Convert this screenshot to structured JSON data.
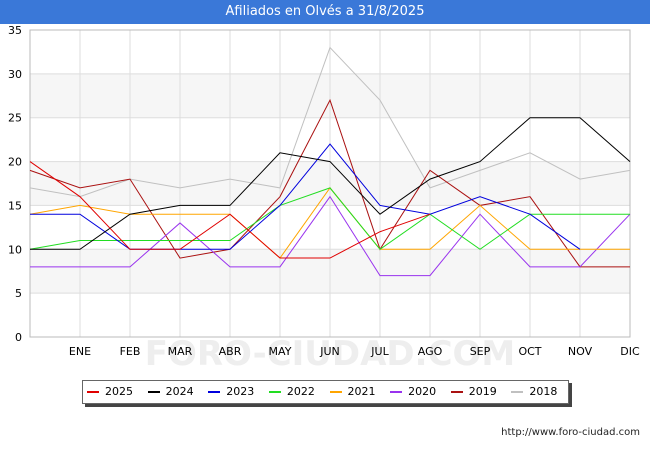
{
  "title": "Afiliados en Olvés a 31/8/2025",
  "footer": "http://www.foro-ciudad.com",
  "watermark": "FORO-CIUDAD.COM",
  "chart_data": {
    "type": "line",
    "categories": [
      "",
      "ENE",
      "FEB",
      "MAR",
      "ABR",
      "MAY",
      "JUN",
      "JUL",
      "AGO",
      "SEP",
      "OCT",
      "NOV",
      "DIC"
    ],
    "ylim": [
      0,
      35
    ],
    "yticks": [
      0,
      5,
      10,
      15,
      20,
      25,
      30,
      35
    ],
    "grid": true,
    "legend_position": "bottom",
    "series": [
      {
        "name": "2025",
        "color": "#e00000",
        "values": [
          20,
          16,
          10,
          10,
          14,
          9,
          9,
          12,
          14,
          null,
          null,
          null,
          null
        ]
      },
      {
        "name": "2024",
        "color": "#000000",
        "values": [
          10,
          10,
          14,
          15,
          15,
          21,
          20,
          14,
          18,
          20,
          25,
          25,
          20
        ]
      },
      {
        "name": "2023",
        "color": "#0000dd",
        "values": [
          14,
          14,
          10,
          10,
          10,
          15,
          22,
          15,
          14,
          16,
          14,
          10,
          null
        ]
      },
      {
        "name": "2022",
        "color": "#22dd22",
        "values": [
          10,
          11,
          11,
          11,
          11,
          15,
          17,
          10,
          14,
          10,
          14,
          14,
          14
        ]
      },
      {
        "name": "2021",
        "color": "#ffa500",
        "values": [
          14,
          15,
          14,
          14,
          14,
          9,
          17,
          10,
          10,
          15,
          10,
          10,
          10
        ]
      },
      {
        "name": "2020",
        "color": "#9933ee",
        "values": [
          8,
          8,
          8,
          13,
          8,
          8,
          16,
          7,
          7,
          14,
          8,
          8,
          14
        ]
      },
      {
        "name": "2019",
        "color": "#aa1111",
        "values": [
          19,
          17,
          18,
          9,
          10,
          16,
          27,
          10,
          19,
          15,
          16,
          8,
          8
        ]
      },
      {
        "name": "2018",
        "color": "#c0c0c0",
        "values": [
          17,
          16,
          18,
          17,
          18,
          17,
          33,
          27,
          17,
          19,
          21,
          18,
          19
        ]
      }
    ]
  }
}
